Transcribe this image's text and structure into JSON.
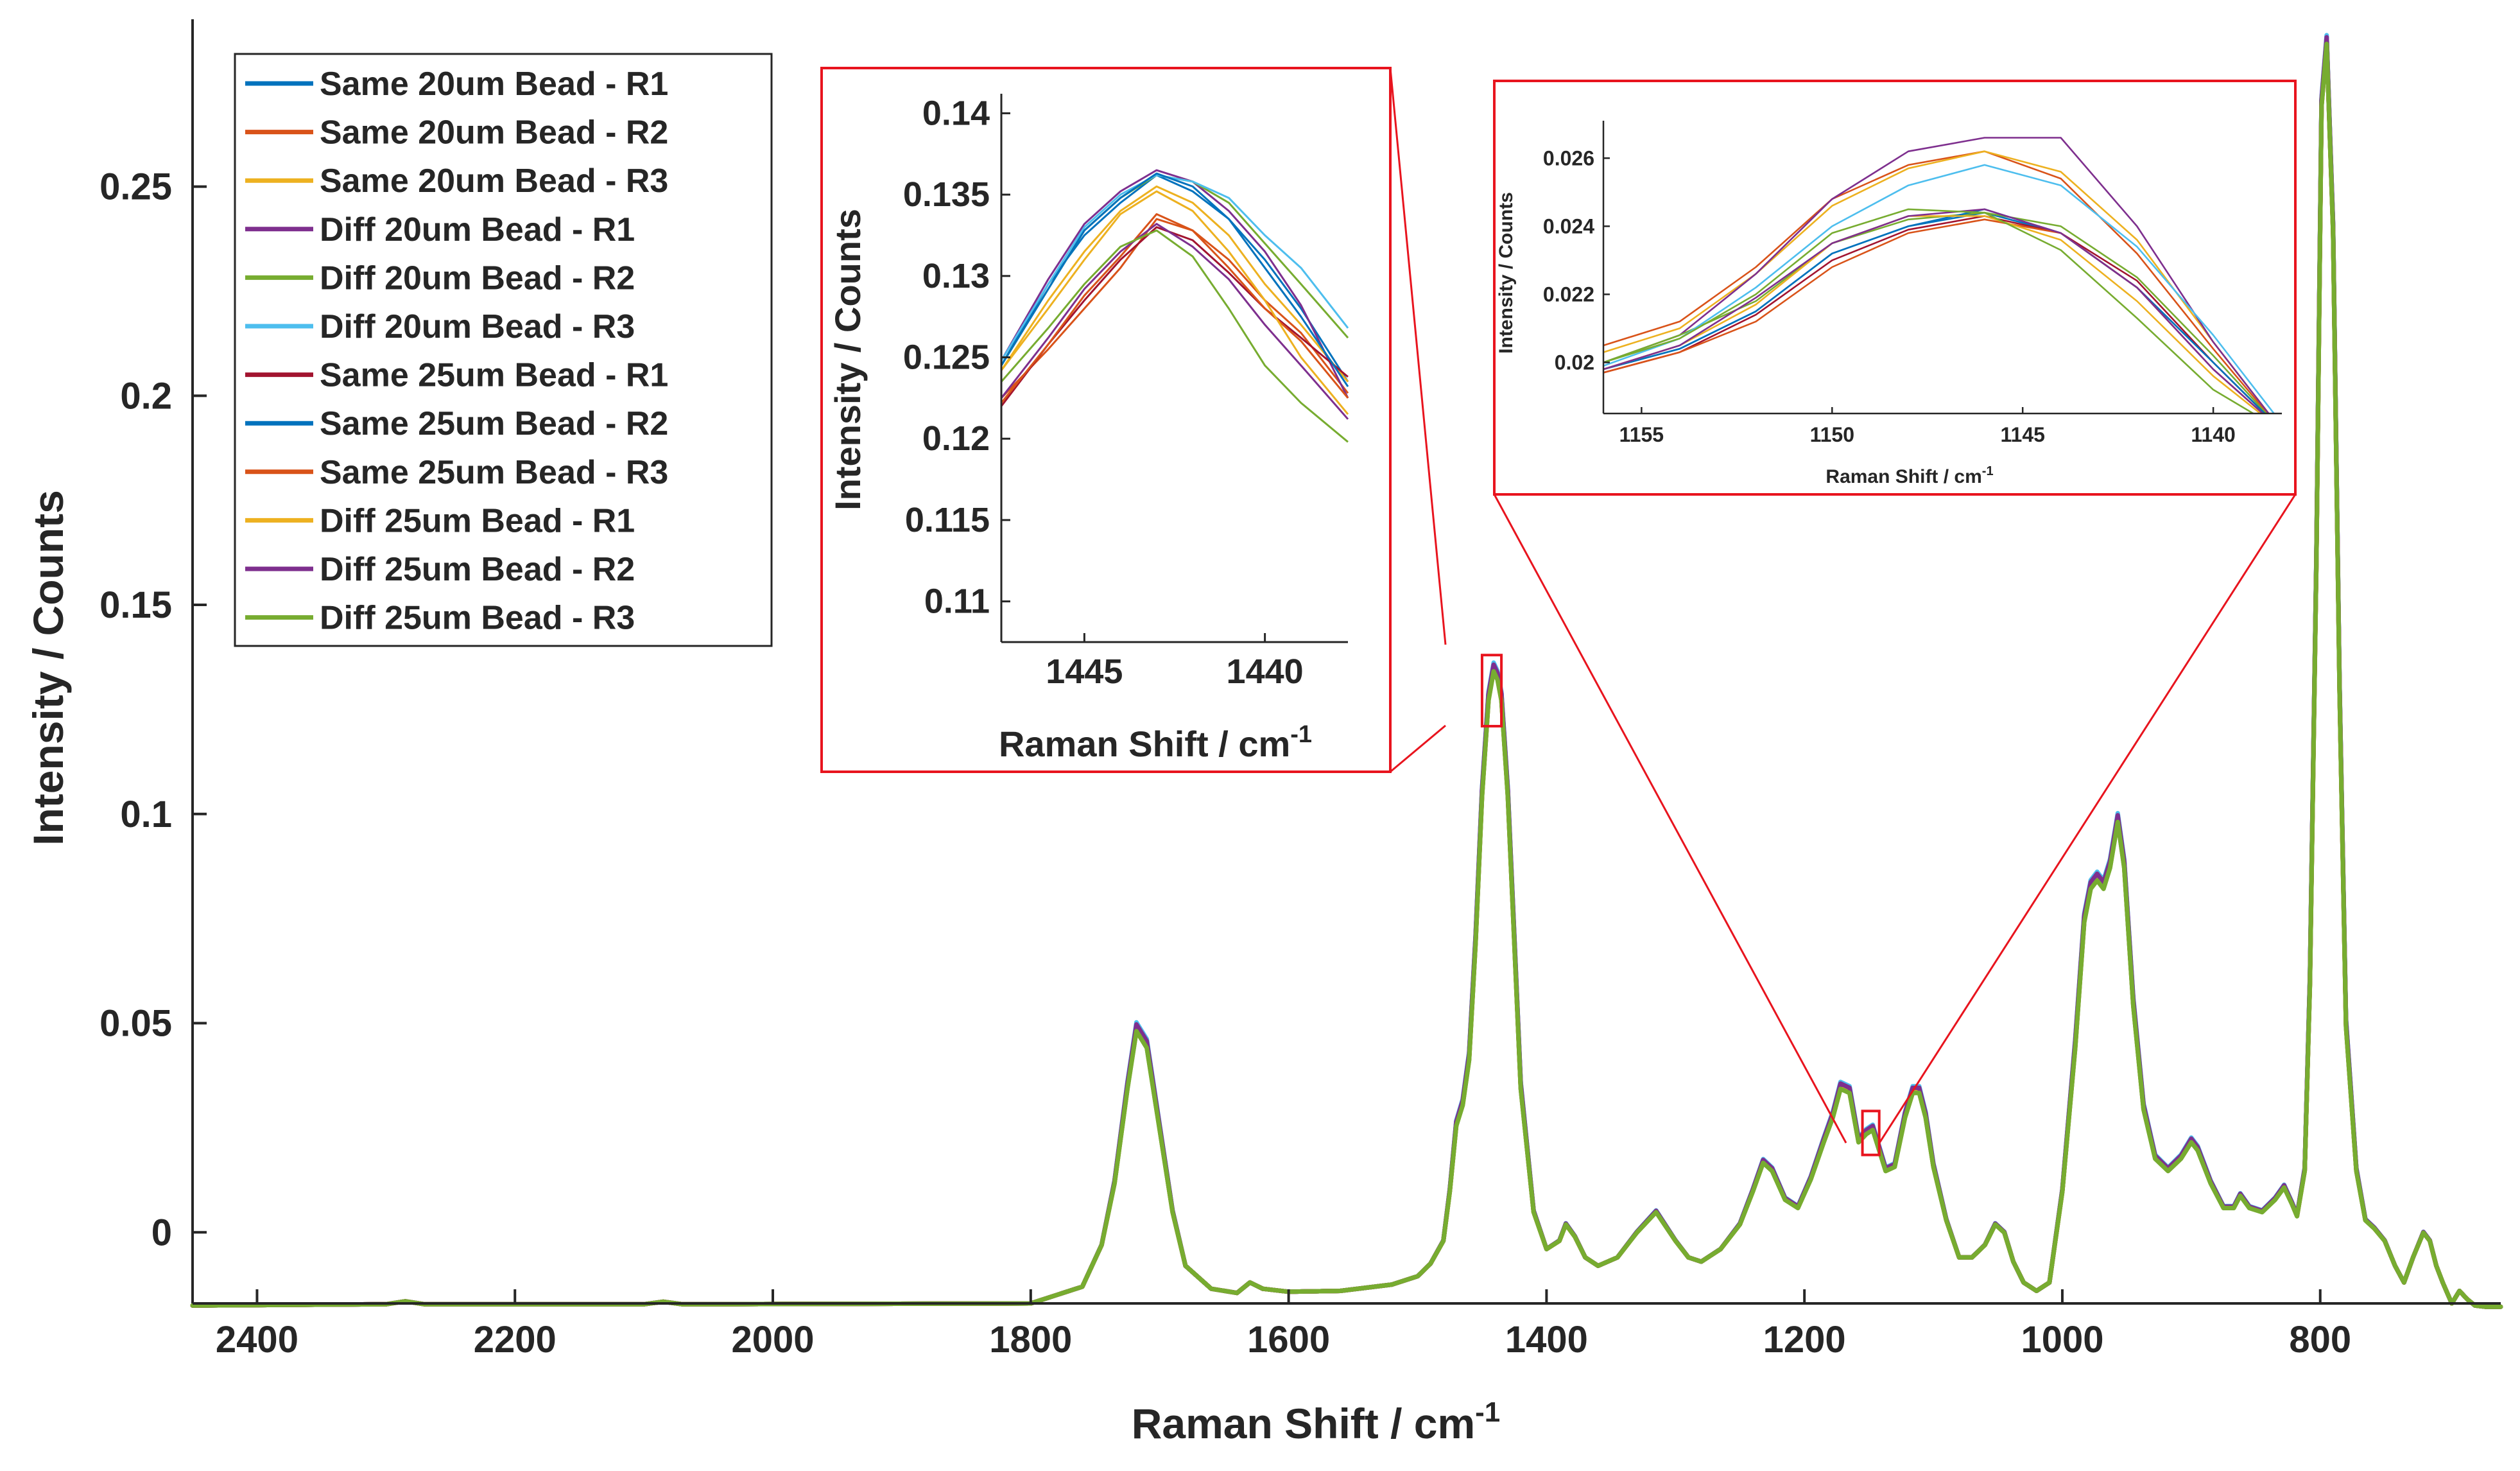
{
  "chart_data": [
    {
      "name": "main",
      "type": "line",
      "title": "",
      "xlabel": "Raman Shift / cm",
      "xlabel_sup": "-1",
      "ylabel": "Intensity / Counts",
      "xlim": [
        2450,
        660
      ],
      "ylim": [
        -0.017,
        0.29
      ],
      "x_reversed": true,
      "grid": false,
      "legend_position": "top-left",
      "xticks": [
        2400,
        2200,
        2000,
        1800,
        1600,
        1400,
        1200,
        1000,
        800
      ],
      "xtick_labels": [
        "2400",
        "2200",
        "2000",
        "1800",
        "1600",
        "1400",
        "1200",
        "1000",
        "800"
      ],
      "yticks": [
        0,
        0.05,
        0.1,
        0.15,
        0.2,
        0.25
      ],
      "ytick_labels": [
        "0",
        "0.05",
        "0.1",
        "0.15",
        "0.2",
        "0.25"
      ],
      "series": [
        {
          "name": "Same 20um Bead - R1",
          "color": "#0072BD"
        },
        {
          "name": "Same 20um Bead - R2",
          "color": "#D95319"
        },
        {
          "name": "Same 20um Bead - R3",
          "color": "#EDB120"
        },
        {
          "name": "Diff 20um Bead - R1",
          "color": "#7E2F8E"
        },
        {
          "name": "Diff 20um Bead - R2",
          "color": "#77AC30"
        },
        {
          "name": "Diff 20um Bead - R3",
          "color": "#4DBEEE"
        },
        {
          "name": "Same 25um Bead - R1",
          "color": "#A2142F"
        },
        {
          "name": "Same 25um Bead - R2",
          "color": "#0072BD"
        },
        {
          "name": "Same 25um Bead - R3",
          "color": "#D95319"
        },
        {
          "name": "Diff 25um Bead - R1",
          "color": "#EDB120"
        },
        {
          "name": "Diff 25um Bead - R2",
          "color": "#7E2F8E"
        },
        {
          "name": "Diff 25um Bead - R3",
          "color": "#77AC30"
        }
      ],
      "x": [
        2450,
        2300,
        2285,
        2270,
        2100,
        2085,
        2070,
        1800,
        1760,
        1745,
        1735,
        1725,
        1718,
        1710,
        1700,
        1690,
        1680,
        1660,
        1640,
        1630,
        1620,
        1600,
        1560,
        1520,
        1500,
        1490,
        1480,
        1475,
        1470,
        1465,
        1460,
        1455,
        1450,
        1445,
        1441,
        1438,
        1435,
        1430,
        1425,
        1420,
        1410,
        1400,
        1390,
        1385,
        1378,
        1370,
        1360,
        1345,
        1330,
        1315,
        1300,
        1290,
        1280,
        1265,
        1250,
        1240,
        1232,
        1225,
        1215,
        1205,
        1195,
        1185,
        1178,
        1172,
        1165,
        1158,
        1152,
        1147,
        1142,
        1137,
        1130,
        1122,
        1116,
        1111,
        1106,
        1100,
        1090,
        1080,
        1070,
        1060,
        1052,
        1045,
        1038,
        1030,
        1020,
        1010,
        1000,
        990,
        983,
        978,
        973,
        968,
        963,
        957,
        952,
        945,
        937,
        928,
        918,
        908,
        900,
        895,
        885,
        875,
        867,
        862,
        855,
        845,
        835,
        828,
        822,
        818,
        812,
        808,
        803,
        799,
        795,
        790,
        785,
        780,
        772,
        765,
        758,
        750,
        742,
        735,
        728,
        720,
        715,
        710,
        705,
        698,
        692,
        686,
        680,
        672,
        665,
        660
      ],
      "y": [
        -0.0175,
        -0.0172,
        -0.0165,
        -0.0172,
        -0.0172,
        -0.0166,
        -0.0172,
        -0.017,
        -0.013,
        -0.003,
        0.012,
        0.035,
        0.049,
        0.045,
        0.025,
        0.005,
        -0.008,
        -0.0135,
        -0.0145,
        -0.012,
        -0.0135,
        -0.0142,
        -0.014,
        -0.0125,
        -0.0105,
        -0.0075,
        -0.002,
        0.01,
        0.026,
        0.031,
        0.042,
        0.07,
        0.105,
        0.128,
        0.135,
        0.133,
        0.128,
        0.105,
        0.07,
        0.035,
        0.005,
        -0.004,
        -0.002,
        0.002,
        -0.001,
        -0.006,
        -0.008,
        -0.006,
        0.0,
        0.005,
        -0.002,
        -0.006,
        -0.007,
        -0.004,
        0.002,
        0.01,
        0.017,
        0.015,
        0.008,
        0.006,
        0.013,
        0.022,
        0.028,
        0.035,
        0.034,
        0.022,
        0.024,
        0.025,
        0.02,
        0.015,
        0.016,
        0.028,
        0.034,
        0.034,
        0.028,
        0.016,
        0.003,
        -0.006,
        -0.006,
        -0.003,
        0.002,
        0.0,
        -0.007,
        -0.012,
        -0.014,
        -0.012,
        0.01,
        0.045,
        0.075,
        0.083,
        0.085,
        0.083,
        0.088,
        0.099,
        0.088,
        0.055,
        0.03,
        0.018,
        0.015,
        0.018,
        0.022,
        0.02,
        0.012,
        0.006,
        0.006,
        0.009,
        0.006,
        0.005,
        0.008,
        0.011,
        0.007,
        0.004,
        0.015,
        0.06,
        0.16,
        0.27,
        0.285,
        0.24,
        0.13,
        0.05,
        0.015,
        0.003,
        0.001,
        -0.002,
        -0.008,
        -0.012,
        -0.006,
        0.0,
        -0.002,
        -0.008,
        -0.012,
        -0.017,
        -0.014,
        -0.016,
        -0.0175,
        -0.0178,
        -0.0178,
        -0.0178
      ],
      "zoom_regions": [
        {
          "x": [
            1450,
            1435
          ],
          "y": [
            0.121,
            0.138
          ]
        },
        {
          "x": [
            1155,
            1142
          ],
          "y": [
            0.0185,
            0.029
          ]
        }
      ]
    },
    {
      "name": "inset-1",
      "type": "line",
      "xlabel": "Raman Shift / cm",
      "xlabel_sup": "-1",
      "ylabel": "Intensity / Counts",
      "xlim": [
        1447.3,
        1437.7
      ],
      "ylim": [
        0.1075,
        0.1412
      ],
      "x_reversed": true,
      "xticks": [
        1445,
        1440
      ],
      "xtick_labels": [
        "1445",
        "1440"
      ],
      "yticks": [
        0.11,
        0.115,
        0.12,
        0.125,
        0.13,
        0.135,
        0.14
      ],
      "ytick_labels": [
        "0.11",
        "0.115",
        "0.12",
        "0.125",
        "0.13",
        "0.135",
        "0.14"
      ],
      "x": [
        1447.3,
        1446,
        1445,
        1444,
        1443,
        1442,
        1441,
        1440,
        1439,
        1437.7
      ],
      "series_values": [
        [
          0.1245,
          0.1295,
          0.1325,
          0.1345,
          0.1362,
          0.1352,
          0.1335,
          0.131,
          0.128,
          0.1235
        ],
        [
          0.1225,
          0.1255,
          0.128,
          0.1305,
          0.1335,
          0.1328,
          0.131,
          0.1285,
          0.1265,
          0.1228
        ],
        [
          0.1242,
          0.1285,
          0.1315,
          0.134,
          0.1355,
          0.1345,
          0.1325,
          0.1295,
          0.127,
          0.1235
        ],
        [
          0.1248,
          0.1298,
          0.1332,
          0.1352,
          0.1365,
          0.1358,
          0.134,
          0.1315,
          0.1282,
          0.1225
        ],
        [
          0.1245,
          0.1292,
          0.1328,
          0.1348,
          0.1362,
          0.1358,
          0.1345,
          0.132,
          0.1295,
          0.1262
        ],
        [
          0.1248,
          0.1295,
          0.133,
          0.135,
          0.1362,
          0.1358,
          0.1348,
          0.1325,
          0.1305,
          0.1268
        ],
        [
          0.122,
          0.1258,
          0.1285,
          0.131,
          0.133,
          0.1322,
          0.1302,
          0.128,
          0.1262,
          0.1238
        ],
        [
          0.1245,
          0.1292,
          0.1328,
          0.1348,
          0.1363,
          0.1355,
          0.1335,
          0.1305,
          0.1275,
          0.1232
        ],
        [
          0.1222,
          0.1258,
          0.1288,
          0.1312,
          0.1338,
          0.1328,
          0.1305,
          0.128,
          0.126,
          0.1225
        ],
        [
          0.1242,
          0.128,
          0.131,
          0.1338,
          0.1352,
          0.134,
          0.1315,
          0.1285,
          0.125,
          0.1215
        ],
        [
          0.1225,
          0.1262,
          0.1292,
          0.1315,
          0.1332,
          0.1318,
          0.1298,
          0.127,
          0.1245,
          0.1212
        ],
        [
          0.1235,
          0.1268,
          0.1295,
          0.1318,
          0.1328,
          0.1312,
          0.128,
          0.1245,
          0.1222,
          0.1198
        ]
      ]
    },
    {
      "name": "inset-2",
      "type": "line",
      "xlabel": "Raman Shift / cm",
      "xlabel_sup": "-1",
      "ylabel": "Intensity / Counts",
      "xlim": [
        1156,
        1138.2
      ],
      "ylim": [
        0.0185,
        0.0271
      ],
      "x_reversed": true,
      "xticks": [
        1155,
        1150,
        1145,
        1140
      ],
      "xtick_labels": [
        "1155",
        "1150",
        "1145",
        "1140"
      ],
      "yticks": [
        0.02,
        0.022,
        0.024,
        0.026
      ],
      "ytick_labels": [
        "0.02",
        "0.022",
        "0.024",
        "0.026"
      ],
      "x": [
        1156,
        1154,
        1152,
        1150,
        1148,
        1146,
        1144,
        1142,
        1140,
        1138.2
      ],
      "series_values": [
        [
          0.0198,
          0.0204,
          0.0215,
          0.0232,
          0.024,
          0.0244,
          0.0238,
          0.0222,
          0.02,
          0.018
        ],
        [
          0.0205,
          0.0212,
          0.0228,
          0.0248,
          0.0258,
          0.0262,
          0.0254,
          0.0232,
          0.0204,
          0.018
        ],
        [
          0.0203,
          0.021,
          0.0226,
          0.0246,
          0.0257,
          0.0262,
          0.0256,
          0.0236,
          0.0206,
          0.018
        ],
        [
          0.02,
          0.0208,
          0.0226,
          0.0248,
          0.0262,
          0.0266,
          0.0266,
          0.024,
          0.0206,
          0.018
        ],
        [
          0.02,
          0.0208,
          0.0218,
          0.0235,
          0.0242,
          0.0244,
          0.024,
          0.0225,
          0.0202,
          0.018
        ],
        [
          0.0199,
          0.0207,
          0.0222,
          0.024,
          0.0252,
          0.0258,
          0.0252,
          0.0234,
          0.0208,
          0.0182
        ],
        [
          0.0197,
          0.0203,
          0.0214,
          0.023,
          0.0239,
          0.0243,
          0.0238,
          0.0224,
          0.02,
          0.018
        ],
        [
          0.0198,
          0.0204,
          0.0215,
          0.0232,
          0.024,
          0.0245,
          0.0238,
          0.0222,
          0.02,
          0.018
        ],
        [
          0.0197,
          0.0203,
          0.0212,
          0.0228,
          0.0238,
          0.0242,
          0.0238,
          0.0222,
          0.0198,
          0.018
        ],
        [
          0.0198,
          0.0205,
          0.0217,
          0.0235,
          0.0243,
          0.0243,
          0.0236,
          0.0218,
          0.0196,
          0.018
        ],
        [
          0.0198,
          0.0205,
          0.0219,
          0.0235,
          0.0243,
          0.0245,
          0.0238,
          0.0222,
          0.0198,
          0.018
        ],
        [
          0.02,
          0.0207,
          0.022,
          0.0238,
          0.0245,
          0.0244,
          0.0233,
          0.0213,
          0.0192,
          0.018
        ]
      ]
    }
  ]
}
